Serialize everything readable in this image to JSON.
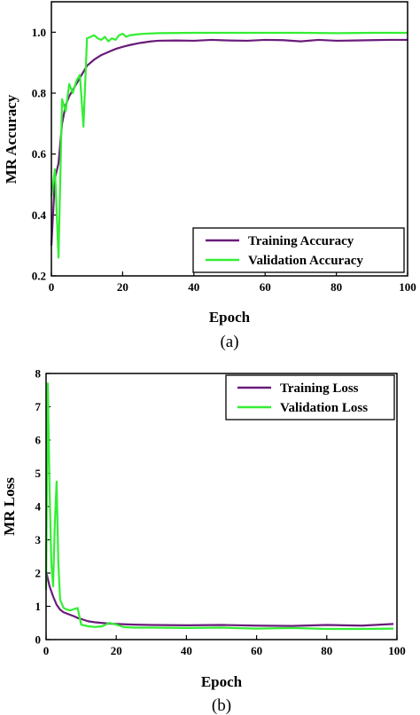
{
  "colors": {
    "training": "#6a1b7a",
    "validation": "#33ee33"
  },
  "chart_data": [
    {
      "type": "line",
      "panel_label": "(a)",
      "xlabel": "Epoch",
      "ylabel": "MR Accuracy",
      "xlim": [
        0,
        100
      ],
      "ylim": [
        0.2,
        1.1
      ],
      "xticks": [
        "0",
        "20",
        "40",
        "60",
        "80",
        "100"
      ],
      "yticks": [
        "0.2",
        "0.4",
        "0.6",
        "0.8",
        "1.0"
      ],
      "legend_position": "bottom-right",
      "series": [
        {
          "name": "Training Accuracy",
          "color_key": "training",
          "x": [
            0,
            1,
            2,
            3,
            4,
            5,
            6,
            7,
            8,
            9,
            10,
            12,
            14,
            16,
            18,
            20,
            22,
            25,
            28,
            30,
            35,
            40,
            45,
            50,
            55,
            60,
            65,
            70,
            75,
            80,
            85,
            90,
            95,
            100
          ],
          "y": [
            0.3,
            0.52,
            0.57,
            0.7,
            0.76,
            0.79,
            0.81,
            0.83,
            0.85,
            0.87,
            0.89,
            0.91,
            0.925,
            0.935,
            0.945,
            0.952,
            0.958,
            0.965,
            0.97,
            0.972,
            0.973,
            0.972,
            0.975,
            0.973,
            0.972,
            0.975,
            0.974,
            0.97,
            0.975,
            0.972,
            0.973,
            0.974,
            0.975,
            0.975
          ]
        },
        {
          "name": "Validation Accuracy",
          "color_key": "validation",
          "x": [
            0,
            1,
            2,
            3,
            4,
            5,
            6,
            7,
            8,
            9,
            10,
            11,
            12,
            13,
            14,
            15,
            16,
            17,
            18,
            19,
            20,
            21,
            22,
            24,
            26,
            30,
            40,
            50,
            60,
            70,
            80,
            90,
            100
          ],
          "y": [
            0.46,
            0.55,
            0.26,
            0.78,
            0.74,
            0.83,
            0.8,
            0.84,
            0.86,
            0.69,
            0.98,
            0.985,
            0.99,
            0.98,
            0.975,
            0.985,
            0.97,
            0.98,
            0.975,
            0.99,
            0.995,
            0.985,
            0.99,
            0.993,
            0.995,
            0.997,
            0.998,
            0.998,
            0.998,
            0.998,
            0.997,
            0.998,
            0.998
          ]
        }
      ]
    },
    {
      "type": "line",
      "panel_label": "(b)",
      "xlabel": "Epoch",
      "ylabel": "MR Loss",
      "xlim": [
        0,
        100
      ],
      "ylim": [
        0,
        8
      ],
      "xticks": [
        "0",
        "20",
        "40",
        "60",
        "80",
        "100"
      ],
      "yticks": [
        "0",
        "1",
        "2",
        "3",
        "4",
        "5",
        "6",
        "7",
        "8"
      ],
      "legend_position": "top-right",
      "series": [
        {
          "name": "Training Loss",
          "color_key": "training",
          "x": [
            0,
            1,
            2,
            3,
            4,
            5,
            6,
            7,
            8,
            9,
            10,
            12,
            14,
            16,
            18,
            20,
            25,
            30,
            40,
            50,
            60,
            70,
            80,
            90,
            99
          ],
          "y": [
            2.05,
            1.6,
            1.3,
            1.05,
            0.9,
            0.82,
            0.78,
            0.74,
            0.7,
            0.65,
            0.62,
            0.55,
            0.52,
            0.5,
            0.48,
            0.47,
            0.45,
            0.44,
            0.43,
            0.44,
            0.42,
            0.41,
            0.44,
            0.42,
            0.47
          ]
        },
        {
          "name": "Validation Loss",
          "color_key": "validation",
          "x": [
            0,
            0.5,
            1,
            1.5,
            2,
            2.5,
            3,
            3.5,
            4,
            5,
            6,
            7,
            8,
            9,
            10,
            12,
            14,
            16,
            18,
            20,
            22,
            25,
            30,
            40,
            50,
            60,
            70,
            80,
            90,
            99
          ],
          "y": [
            1.5,
            7.7,
            4.5,
            2.3,
            1.6,
            3.5,
            4.75,
            2.3,
            1.2,
            0.95,
            0.9,
            0.88,
            0.92,
            0.95,
            0.45,
            0.4,
            0.38,
            0.4,
            0.5,
            0.45,
            0.38,
            0.36,
            0.36,
            0.35,
            0.36,
            0.33,
            0.35,
            0.32,
            0.32,
            0.33
          ]
        }
      ]
    }
  ]
}
